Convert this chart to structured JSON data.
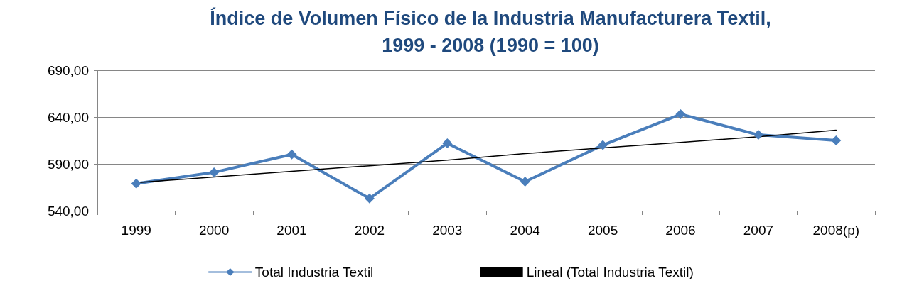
{
  "chart_data": {
    "type": "line",
    "title": "Índice de Volumen Físico de la Industria Manufacturera Textil,\n1999 - 2008 (1990 = 100)",
    "categories": [
      "1999",
      "2000",
      "2001",
      "2002",
      "2003",
      "2004",
      "2005",
      "2006",
      "2007",
      "2008(p)"
    ],
    "series": [
      {
        "name": "Total Industria Textil",
        "color": "#4a7ebb",
        "values": [
          569,
          581,
          600,
          553,
          612,
          571,
          610,
          643,
          621,
          615
        ]
      },
      {
        "name": "Lineal (Total Industria Textil)",
        "type": "line",
        "color": "#000000",
        "marker": "none",
        "values": [
          570,
          576,
          582,
          588,
          594,
          601,
          607,
          613,
          619,
          626
        ]
      }
    ],
    "ylim": [
      540,
      690
    ],
    "yticks": [
      {
        "value": 540,
        "label": "540,00"
      },
      {
        "value": 590,
        "label": "590,00"
      },
      {
        "value": 640,
        "label": "640,00"
      },
      {
        "value": 690,
        "label": "690,00"
      }
    ],
    "grid": "y",
    "legend": "bottom",
    "marker": "diamond",
    "line_style": "solid"
  }
}
